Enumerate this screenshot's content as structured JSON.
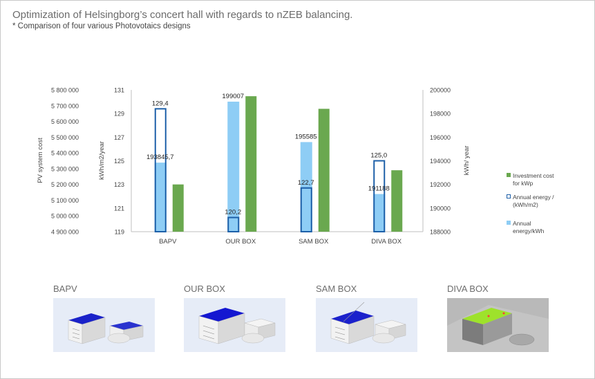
{
  "title": "Optimization of Helsingborg’s concert hall with regards to nZEB balancing.",
  "subtitle": "* Comparison of four various Photovotaics designs",
  "colors": {
    "investment": "#6aa84f",
    "annual_m2_stroke": "#1c5fa8",
    "annual_kwh": "#8ecdf5"
  },
  "chart_data": {
    "type": "bar",
    "categories": [
      "BAPV",
      "OUR BOX",
      "SAM BOX",
      "DIVA BOX"
    ],
    "left_outer_axis": {
      "label": "PV system  cost",
      "ticks": [
        "5 800 000",
        "5 700 000",
        "5 600 000",
        "5 500 000",
        "5 400 000",
        "5 300 000",
        "5 200 000",
        "5 100 000",
        "5 000 000",
        "4 900 000"
      ],
      "range": [
        4900000,
        5800000
      ]
    },
    "left_inner_axis": {
      "label": "kWh/m2/year",
      "ticks": [
        "131",
        "129",
        "127",
        "125",
        "123",
        "121",
        "119"
      ],
      "range": [
        119,
        131
      ]
    },
    "right_axis": {
      "label": "kWh/ year",
      "ticks": [
        "200000",
        "198000",
        "196000",
        "194000",
        "192000",
        "190000",
        "188000"
      ],
      "range": [
        188000,
        200000
      ]
    },
    "series": [
      {
        "name": "Annual energy/kWh",
        "axis": "right",
        "values": [
          193845.7,
          199007,
          195585,
          191188
        ],
        "labels": [
          "193845,7",
          "199007",
          "195585",
          "191188"
        ]
      },
      {
        "name": "Annual energy / (kWh/m2)",
        "axis": "left_inner",
        "values": [
          129.4,
          120.2,
          122.7,
          125.0
        ],
        "labels": [
          "129,4",
          "120,2",
          "122,7",
          "125,0"
        ]
      },
      {
        "name": "Investment cost for kWp",
        "axis": "left_outer",
        "values": [
          5200000,
          5760000,
          5680000,
          5290000
        ]
      }
    ],
    "legend": [
      {
        "label": "Investment cost for kWp",
        "style": "fill",
        "color": "#6aa84f"
      },
      {
        "label": "Annual energy / (kWh/m2)",
        "style": "outline",
        "color": "#1c5fa8"
      },
      {
        "label": "Annual energy/kWh",
        "style": "fill",
        "color": "#8ecdf5"
      }
    ]
  },
  "thumbnails": [
    {
      "label": "BAPV"
    },
    {
      "label": "OUR BOX"
    },
    {
      "label": "SAM BOX"
    },
    {
      "label": "DIVA BOX"
    }
  ]
}
